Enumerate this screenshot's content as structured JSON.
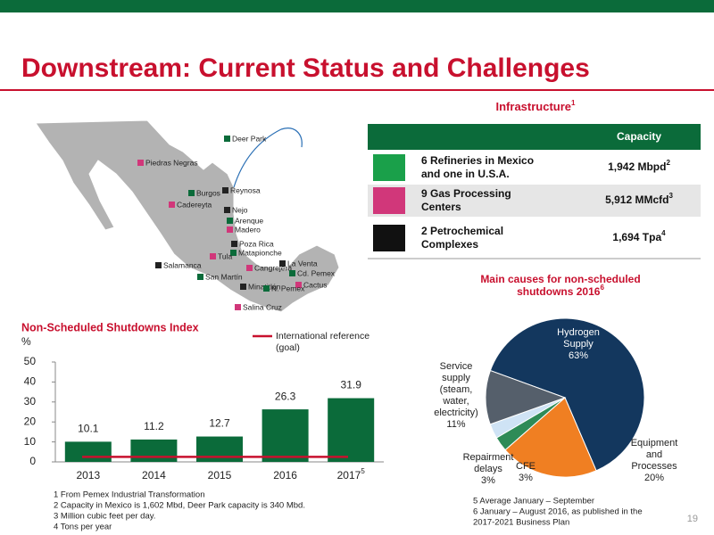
{
  "header": {
    "title": "Downstream: Current Status and Challenges",
    "page_number": "19"
  },
  "infrastructure": {
    "title": "Infrastructure",
    "title_note": "1",
    "column_header": "Capacity",
    "rows": [
      {
        "label": [
          "6 Refineries in Mexico",
          "and one in U.S.A."
        ],
        "capacity": "1,942 Mbpd",
        "note": "2"
      },
      {
        "label": [
          "9 Gas Processing",
          "Centers"
        ],
        "capacity": "5,912 MMcfd",
        "note": "3"
      },
      {
        "label": [
          "2 Petrochemical",
          "Complexes"
        ],
        "capacity": "1,694 Tpa",
        "note": "4"
      }
    ]
  },
  "map": {
    "labels": [
      "Deer Park",
      "Piedras Negras",
      "Reynosa",
      "Burgos",
      "Cadereyta",
      "Nejo",
      "Arenque",
      "Madero",
      "Poza Rica",
      "Matapionche",
      "Tula",
      "Salamanca",
      "San Martín",
      "Cangrejera",
      "La Venta",
      "Cd. Pemex",
      "Cactus",
      "Minatitlán",
      "N. Pemex",
      "Salina Cruz"
    ]
  },
  "chart_data": [
    {
      "type": "bar",
      "title": "Non-Scheduled Shutdowns Index",
      "y_label": "%",
      "categories": [
        "2013",
        "2014",
        "2015",
        "2016",
        "2017"
      ],
      "category_notes": [
        null,
        null,
        null,
        null,
        "5"
      ],
      "values": [
        10.1,
        11.2,
        12.7,
        26.3,
        31.9
      ],
      "color": "#0b6b3a",
      "ylim": [
        0,
        50
      ],
      "yticks": [
        0,
        10,
        20,
        30,
        40,
        50
      ],
      "reference": {
        "name": "International reference (goal)",
        "value": 2.5,
        "color": "#c8102e"
      }
    },
    {
      "type": "pie",
      "title": [
        "Main causes for non-scheduled",
        "shutdowns 2016"
      ],
      "title_note": "6",
      "categories": [
        [
          "Hydrogen",
          "Supply"
        ],
        [
          "Equipment",
          "and",
          "Processes"
        ],
        [
          "CFE"
        ],
        [
          "Repairment",
          "delays"
        ],
        [
          "Service",
          "supply",
          "(steam,",
          "water,",
          "electricity)"
        ]
      ],
      "values": [
        63,
        20,
        3,
        3,
        11
      ],
      "value_labels": [
        "63%",
        "20%",
        "3%",
        "3%",
        "11%"
      ],
      "colors": [
        "#13375e",
        "#f07f22",
        "#2e8b57",
        "#cfe3f5",
        "#555f6b"
      ]
    }
  ],
  "footnotes_left": [
    "1   From Pemex Industrial Transformation",
    "2   Capacity in Mexico is 1,602 Mbd, Deer Park capacity is 340 Mbd.",
    "3   Million cubic feet per day.",
    "4   Tons per year"
  ],
  "footnotes_right": [
    "5   Average January – September",
    "6   January – August 2016, as published in the",
    "2017-2021 Business Plan"
  ]
}
